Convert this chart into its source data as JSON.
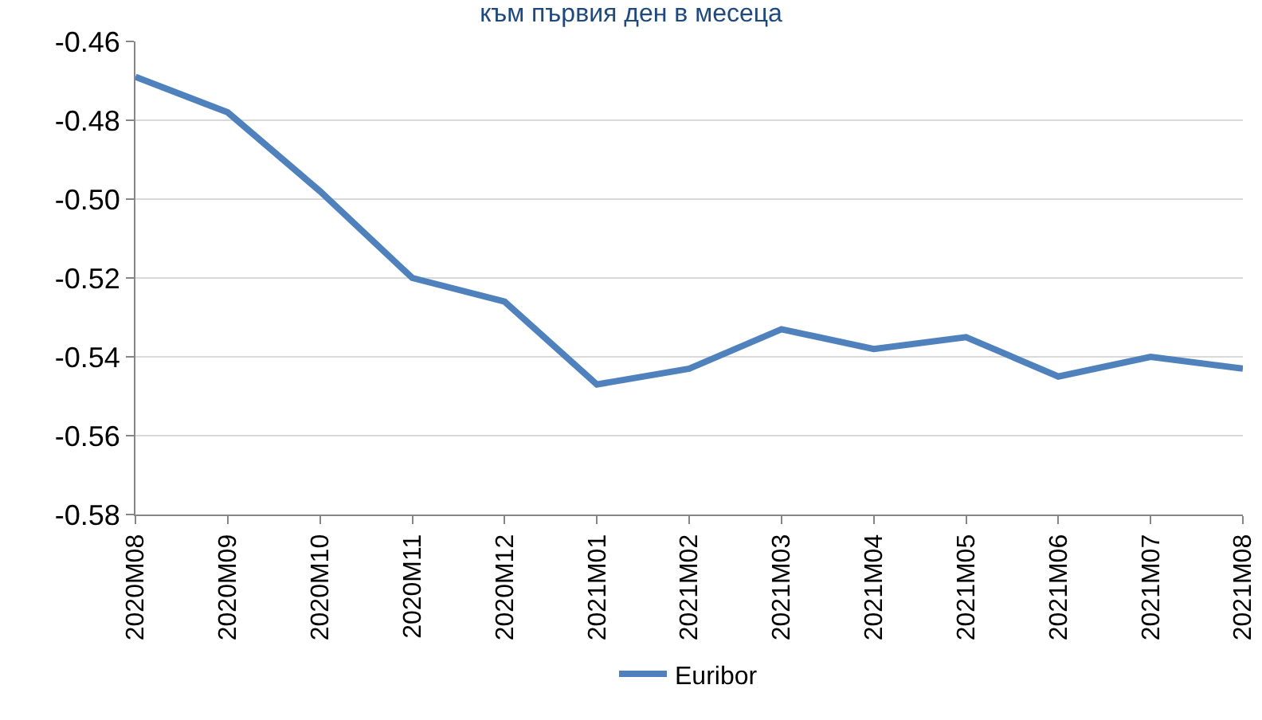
{
  "chart_data": {
    "type": "line",
    "title": "към първия ден в месеца",
    "categories": [
      "2020M08",
      "2020M09",
      "2020M10",
      "2020M11",
      "2020M12",
      "2021M01",
      "2021M02",
      "2021M03",
      "2021M04",
      "2021M05",
      "2021M06",
      "2021M07",
      "2021M08"
    ],
    "series": [
      {
        "name": "Euribor",
        "color": "#4f81bd",
        "values": [
          -0.469,
          -0.478,
          -0.498,
          -0.52,
          -0.526,
          -0.547,
          -0.543,
          -0.533,
          -0.538,
          -0.535,
          -0.545,
          -0.54,
          -0.543
        ]
      }
    ],
    "ylim": [
      -0.58,
      -0.46
    ],
    "yticks": [
      -0.58,
      -0.56,
      -0.54,
      -0.52,
      {
        "value": -0.5,
        "label": "-0.50"
      },
      -0.48,
      -0.46
    ],
    "grid": "y",
    "legend": "bottom",
    "marker": "none",
    "line_style": "solid"
  }
}
